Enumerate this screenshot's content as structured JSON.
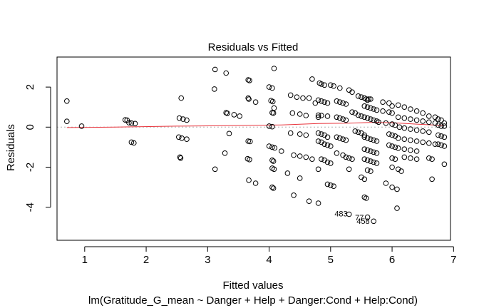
{
  "chart_data": {
    "type": "scatter",
    "title": "Residuals vs Fitted",
    "xlabel": "Fitted values",
    "ylabel": "Residuals",
    "subtitle": "lm(Gratitude_G_mean ~ Danger + Help + Danger:Cond + Help:Cond)",
    "xlim": [
      0.55,
      6.95
    ],
    "ylim": [
      -5.65,
      3.5
    ],
    "x_ticks": [
      1,
      2,
      3,
      4,
      5,
      6,
      7
    ],
    "y_ticks": [
      -4,
      -2,
      0,
      2
    ],
    "grid": false,
    "legend": "none",
    "point_style": "open circle",
    "colors": {
      "points": "#000000",
      "smooth": "#e8353d",
      "zero_line": "#b0b0b0"
    },
    "points": [
      [
        0.71,
        1.3
      ],
      [
        0.71,
        0.29
      ],
      [
        0.95,
        0.05
      ],
      [
        1.66,
        0.36
      ],
      [
        1.69,
        0.35
      ],
      [
        1.72,
        0.22
      ],
      [
        1.76,
        0.2
      ],
      [
        1.82,
        0.18
      ],
      [
        1.76,
        -0.75
      ],
      [
        1.8,
        -0.79
      ],
      [
        2.54,
        0.45
      ],
      [
        2.6,
        0.4
      ],
      [
        2.66,
        0.35
      ],
      [
        2.53,
        -0.5
      ],
      [
        2.58,
        -0.55
      ],
      [
        2.66,
        -0.6
      ],
      [
        2.55,
        -1.5
      ],
      [
        2.56,
        -1.55
      ],
      [
        2.57,
        1.45
      ],
      [
        3.12,
        2.88
      ],
      [
        3.3,
        2.7
      ],
      [
        3.11,
        1.9
      ],
      [
        3.12,
        -2.1
      ],
      [
        3.28,
        -1.3
      ],
      [
        3.3,
        0.72
      ],
      [
        3.32,
        0.69
      ],
      [
        3.35,
        -0.32
      ],
      [
        3.43,
        0.62
      ],
      [
        3.52,
        0.55
      ],
      [
        3.66,
        2.36
      ],
      [
        3.68,
        2.33
      ],
      [
        3.66,
        1.45
      ],
      [
        3.67,
        1.4
      ],
      [
        3.78,
        1.25
      ],
      [
        3.66,
        -0.7
      ],
      [
        3.69,
        -0.72
      ],
      [
        3.65,
        -1.58
      ],
      [
        3.68,
        -1.62
      ],
      [
        3.67,
        -2.65
      ],
      [
        3.78,
        -2.8
      ],
      [
        4.0,
        2.0
      ],
      [
        4.05,
        1.95
      ],
      [
        4.03,
        1.32
      ],
      [
        4.06,
        1.28
      ],
      [
        4.08,
        0.95
      ],
      [
        4.05,
        0.72
      ],
      [
        4.07,
        0.7
      ],
      [
        4.0,
        0.05
      ],
      [
        4.05,
        0.02
      ],
      [
        4.0,
        -0.95
      ],
      [
        4.05,
        -1.0
      ],
      [
        4.09,
        -1.04
      ],
      [
        4.05,
        -1.65
      ],
      [
        4.07,
        -1.7
      ],
      [
        4.05,
        -2.05
      ],
      [
        4.08,
        -2.1
      ],
      [
        4.05,
        -3.0
      ],
      [
        4.07,
        -3.05
      ],
      [
        4.08,
        2.93
      ],
      [
        4.2,
        -1.2
      ],
      [
        4.3,
        -2.3
      ],
      [
        4.35,
        1.6
      ],
      [
        4.45,
        1.5
      ],
      [
        4.55,
        1.45
      ],
      [
        4.65,
        1.45
      ],
      [
        4.38,
        0.7
      ],
      [
        4.5,
        0.65
      ],
      [
        4.6,
        0.58
      ],
      [
        4.35,
        -0.3
      ],
      [
        4.5,
        -0.35
      ],
      [
        4.6,
        -0.4
      ],
      [
        4.4,
        -1.4
      ],
      [
        4.5,
        -1.45
      ],
      [
        4.6,
        -1.5
      ],
      [
        4.4,
        -3.4
      ],
      [
        4.5,
        -2.55
      ],
      [
        4.65,
        -3.7
      ],
      [
        4.7,
        -1.6
      ],
      [
        4.7,
        2.4
      ],
      [
        4.82,
        2.2
      ],
      [
        4.85,
        2.15
      ],
      [
        4.9,
        2.1
      ],
      [
        4.8,
        1.35
      ],
      [
        4.85,
        1.3
      ],
      [
        4.9,
        1.25
      ],
      [
        4.75,
        1.2
      ],
      [
        4.95,
        1.2
      ],
      [
        4.8,
        0.6
      ],
      [
        4.85,
        0.58
      ],
      [
        4.95,
        0.55
      ],
      [
        4.8,
        0.5
      ],
      [
        4.8,
        -0.3
      ],
      [
        4.85,
        -0.35
      ],
      [
        4.9,
        -0.4
      ],
      [
        4.95,
        -0.5
      ],
      [
        4.8,
        -0.7
      ],
      [
        4.85,
        -0.75
      ],
      [
        4.9,
        -0.85
      ],
      [
        4.95,
        -0.9
      ],
      [
        5.0,
        -0.95
      ],
      [
        4.85,
        -1.6
      ],
      [
        4.9,
        -1.65
      ],
      [
        4.95,
        -1.75
      ],
      [
        5.0,
        -1.8
      ],
      [
        4.8,
        -2.1
      ],
      [
        4.8,
        -3.8
      ],
      [
        4.95,
        -2.85
      ],
      [
        5.0,
        -2.9
      ],
      [
        5.05,
        -2.95
      ],
      [
        5.0,
        2.1
      ],
      [
        5.05,
        2.05
      ],
      [
        5.15,
        1.95
      ],
      [
        5.1,
        1.3
      ],
      [
        5.15,
        1.25
      ],
      [
        5.2,
        1.2
      ],
      [
        5.25,
        1.15
      ],
      [
        5.1,
        0.5
      ],
      [
        5.15,
        0.45
      ],
      [
        5.2,
        0.4
      ],
      [
        5.25,
        0.35
      ],
      [
        5.1,
        -0.5
      ],
      [
        5.15,
        -0.55
      ],
      [
        5.2,
        -0.6
      ],
      [
        5.25,
        -0.65
      ],
      [
        5.1,
        -1.3
      ],
      [
        5.2,
        -1.4
      ],
      [
        5.25,
        -1.5
      ],
      [
        5.3,
        -1.55
      ],
      [
        5.35,
        -1.6
      ],
      [
        5.3,
        -2.1
      ],
      [
        5.3,
        -4.35
      ],
      [
        5.3,
        1.85
      ],
      [
        5.35,
        1.75
      ],
      [
        5.35,
        0.75
      ],
      [
        5.4,
        0.7
      ],
      [
        5.45,
        0.6
      ],
      [
        5.5,
        0.55
      ],
      [
        5.4,
        -0.2
      ],
      [
        5.45,
        -0.25
      ],
      [
        5.5,
        -0.3
      ],
      [
        5.55,
        -0.4
      ],
      [
        5.5,
        -2.5
      ],
      [
        5.55,
        -2.6
      ],
      [
        5.55,
        -3.5
      ],
      [
        5.58,
        -3.55
      ],
      [
        5.6,
        -4.5
      ],
      [
        5.7,
        -4.7
      ],
      [
        5.45,
        1.55
      ],
      [
        5.5,
        1.5
      ],
      [
        5.55,
        1.45
      ],
      [
        5.58,
        1.4
      ],
      [
        5.6,
        1.35
      ],
      [
        5.62,
        1.4
      ],
      [
        5.65,
        1.4
      ],
      [
        5.55,
        1.05
      ],
      [
        5.6,
        1.0
      ],
      [
        5.65,
        0.95
      ],
      [
        5.7,
        0.9
      ],
      [
        5.75,
        0.85
      ],
      [
        5.55,
        0.5
      ],
      [
        5.6,
        0.45
      ],
      [
        5.65,
        0.4
      ],
      [
        5.7,
        0.35
      ],
      [
        5.75,
        0.3
      ],
      [
        5.78,
        0.25
      ],
      [
        5.55,
        -0.5
      ],
      [
        5.6,
        -0.55
      ],
      [
        5.65,
        -0.6
      ],
      [
        5.7,
        -0.65
      ],
      [
        5.75,
        -0.7
      ],
      [
        5.55,
        -1.1
      ],
      [
        5.6,
        -1.15
      ],
      [
        5.65,
        -1.2
      ],
      [
        5.7,
        -1.25
      ],
      [
        5.75,
        -1.3
      ],
      [
        5.55,
        -1.6
      ],
      [
        5.6,
        -1.65
      ],
      [
        5.65,
        -1.7
      ],
      [
        5.7,
        -1.75
      ],
      [
        5.75,
        -1.8
      ],
      [
        5.6,
        -2.15
      ],
      [
        5.65,
        -2.2
      ],
      [
        5.85,
        1.25
      ],
      [
        5.95,
        1.2
      ],
      [
        6.0,
        1.05
      ],
      [
        5.85,
        0.8
      ],
      [
        5.95,
        0.75
      ],
      [
        6.0,
        0.7
      ],
      [
        5.9,
        0.2
      ],
      [
        6.0,
        0.15
      ],
      [
        6.05,
        0.1
      ],
      [
        5.95,
        -0.35
      ],
      [
        6.0,
        -0.4
      ],
      [
        6.05,
        -0.45
      ],
      [
        5.95,
        -0.9
      ],
      [
        6.0,
        -0.95
      ],
      [
        6.05,
        -1.0
      ],
      [
        6.0,
        -1.55
      ],
      [
        6.05,
        -1.6
      ],
      [
        6.0,
        -2.0
      ],
      [
        6.1,
        -2.1
      ],
      [
        6.15,
        -2.2
      ],
      [
        5.9,
        -2.8
      ],
      [
        6.0,
        -3.0
      ],
      [
        6.08,
        -3.1
      ],
      [
        6.08,
        -4.05
      ],
      [
        6.1,
        1.1
      ],
      [
        6.2,
        1.0
      ],
      [
        6.3,
        0.9
      ],
      [
        6.1,
        0.5
      ],
      [
        6.2,
        0.45
      ],
      [
        6.3,
        0.4
      ],
      [
        6.12,
        0.0
      ],
      [
        6.2,
        -0.05
      ],
      [
        6.3,
        -0.1
      ],
      [
        6.1,
        -0.55
      ],
      [
        6.2,
        -0.6
      ],
      [
        6.3,
        -0.65
      ],
      [
        6.1,
        -1.05
      ],
      [
        6.2,
        -1.1
      ],
      [
        6.3,
        -1.15
      ],
      [
        6.4,
        -1.2
      ],
      [
        6.2,
        -1.5
      ],
      [
        6.3,
        -1.55
      ],
      [
        6.4,
        -1.6
      ],
      [
        6.4,
        0.8
      ],
      [
        6.5,
        0.7
      ],
      [
        6.6,
        0.55
      ],
      [
        6.4,
        0.35
      ],
      [
        6.5,
        0.3
      ],
      [
        6.6,
        0.25
      ],
      [
        6.7,
        0.2
      ],
      [
        6.4,
        -0.15
      ],
      [
        6.5,
        -0.2
      ],
      [
        6.6,
        -0.25
      ],
      [
        6.4,
        -0.7
      ],
      [
        6.5,
        -0.75
      ],
      [
        6.6,
        -0.8
      ],
      [
        6.7,
        -0.85
      ],
      [
        6.6,
        -1.55
      ],
      [
        6.65,
        -1.6
      ],
      [
        6.65,
        -2.6
      ],
      [
        6.7,
        0.5
      ],
      [
        6.75,
        0.4
      ],
      [
        6.8,
        0.35
      ],
      [
        6.85,
        0.2
      ],
      [
        6.75,
        0.1
      ],
      [
        6.8,
        0.05
      ],
      [
        6.85,
        0.05
      ],
      [
        6.75,
        -0.4
      ],
      [
        6.8,
        -0.45
      ],
      [
        6.85,
        -0.5
      ],
      [
        6.75,
        -0.85
      ],
      [
        6.8,
        -0.9
      ],
      [
        6.85,
        -0.95
      ],
      [
        6.85,
        -1.85
      ]
    ],
    "smooth_line": {
      "x": [
        0.71,
        1.5,
        2.5,
        3.5,
        4.2,
        4.8,
        5.3,
        5.7,
        6.0,
        6.4,
        6.85
      ],
      "y": [
        -0.02,
        0.0,
        0.05,
        0.08,
        0.11,
        0.18,
        0.2,
        0.24,
        0.22,
        0.15,
        0.08
      ]
    },
    "annotations": [
      {
        "text": "483",
        "x": 5.17,
        "y": -4.45
      },
      {
        "text": "77",
        "x": 5.47,
        "y": -4.65
      },
      {
        "text": "458",
        "x": 5.53,
        "y": -4.83
      }
    ]
  }
}
